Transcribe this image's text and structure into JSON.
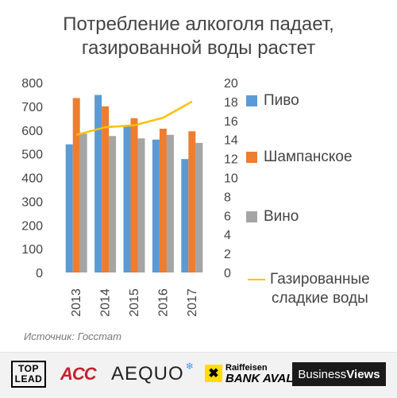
{
  "title_lines": [
    "Потребление алкоголя падает,",
    "газированной воды растет"
  ],
  "source": "Источник: Госстат",
  "chart_data": {
    "type": "bar",
    "categories": [
      "2013",
      "2014",
      "2015",
      "2016",
      "2017"
    ],
    "series": [
      {
        "name": "Пиво",
        "type": "bar",
        "axis": "left",
        "color": "#5b9bd5",
        "values": [
          540,
          748,
          620,
          560,
          478
        ]
      },
      {
        "name": "Шампанское",
        "type": "bar",
        "axis": "left",
        "color": "#ed7d31",
        "values": [
          735,
          700,
          650,
          606,
          595
        ]
      },
      {
        "name": "Вино",
        "type": "bar",
        "axis": "left",
        "color": "#a5a5a5",
        "values": [
          585,
          575,
          565,
          580,
          546
        ]
      },
      {
        "name": "Газированные сладкие воды",
        "type": "line",
        "axis": "right",
        "color": "#ffc000",
        "values": [
          14.5,
          15.3,
          15.5,
          16.3,
          18
        ]
      }
    ],
    "y_left": {
      "min": 0,
      "max": 800,
      "ticks": [
        "0",
        "100",
        "200",
        "300",
        "400",
        "500",
        "600",
        "700",
        "800"
      ]
    },
    "y_right": {
      "min": 0,
      "max": 20,
      "ticks": [
        "0",
        "2",
        "4",
        "6",
        "8",
        "10",
        "12",
        "14",
        "16",
        "18",
        "20"
      ]
    },
    "grid": false,
    "legend_position": "right"
  },
  "legend": [
    {
      "label": "Пиво",
      "kind": "swatch",
      "color": "#5b9bd5"
    },
    {
      "label": "Шампанское",
      "kind": "swatch",
      "color": "#ed7d31"
    },
    {
      "label": "Вино",
      "kind": "swatch",
      "color": "#a5a5a5"
    },
    {
      "label_lines": [
        "Газированные",
        "сладкие воды"
      ],
      "kind": "line",
      "color": "#ffc000"
    }
  ],
  "logos": {
    "toplead": [
      "TOP",
      "LEAD"
    ],
    "acc": "ACC",
    "aequo": "AEQUO",
    "raif_top": "Raiffeisen",
    "raif_bottom": "BANK AVAL",
    "bv_1": "Business",
    "bv_2": "Views"
  }
}
